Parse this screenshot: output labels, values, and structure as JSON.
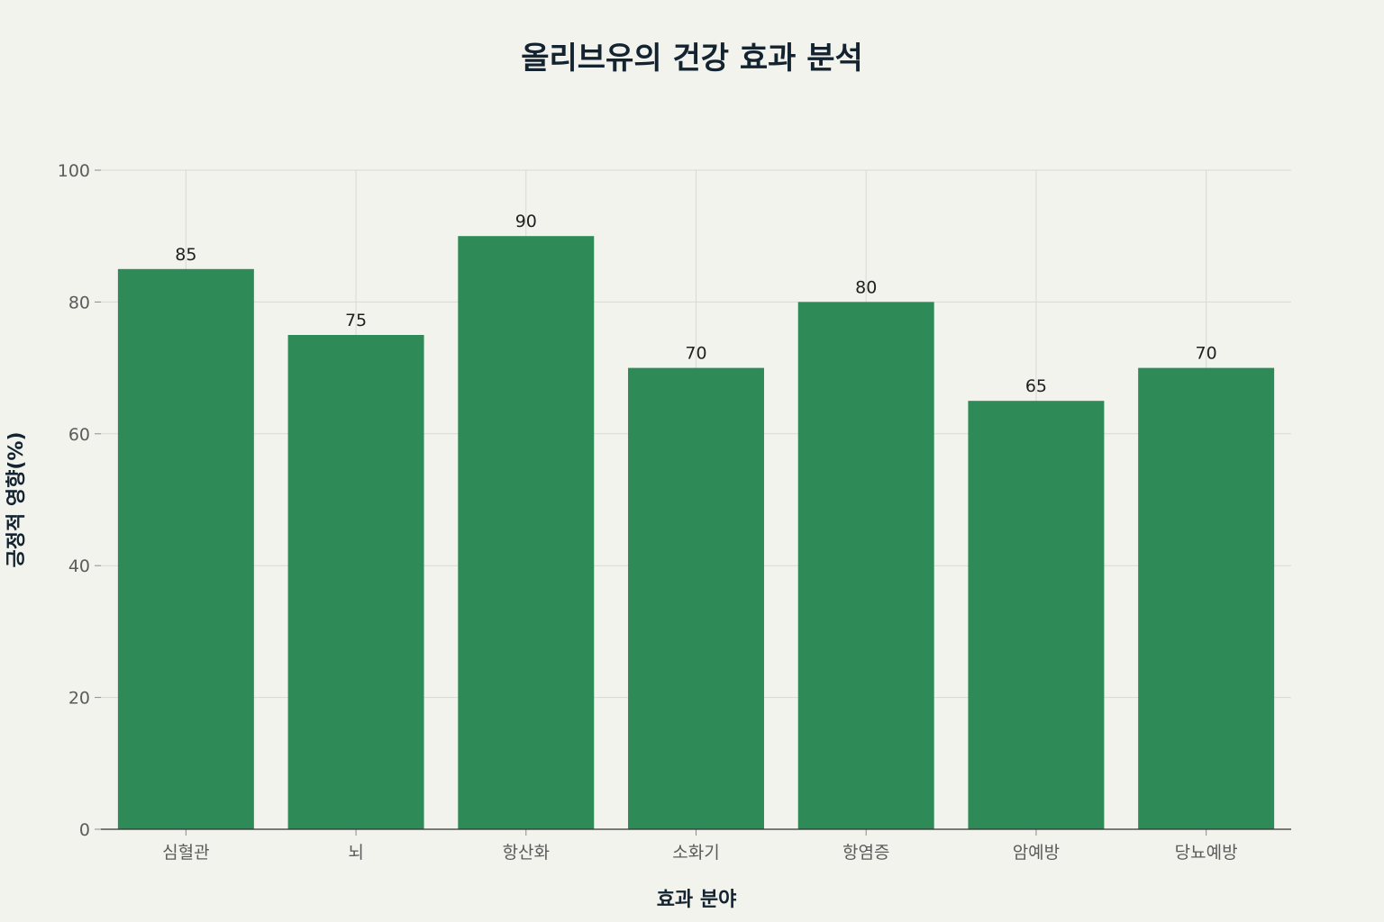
{
  "colors": {
    "background": "#f3f3ee",
    "bar": "#2e8b57",
    "title": "#13232f"
  },
  "chart_data": {
    "type": "bar",
    "title": "올리브유의 건강 효과 분석",
    "xlabel": "효과 분야",
    "ylabel": "긍정적 영향(%)",
    "categories": [
      "심혈관",
      "뇌",
      "항산화",
      "소화기",
      "항염증",
      "암예방",
      "당뇨예방"
    ],
    "values": [
      85,
      75,
      90,
      70,
      80,
      65,
      70
    ],
    "ylim": [
      0,
      100
    ],
    "yticks": [
      0,
      20,
      40,
      60,
      80,
      100
    ],
    "grid": true,
    "legend": "none"
  }
}
